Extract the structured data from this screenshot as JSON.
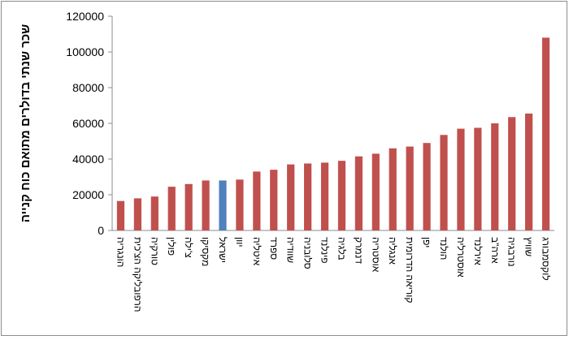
{
  "chart_data": {
    "type": "bar",
    "y_label": "שכר שנתי בדולרים מתואם כוח קנייה",
    "categories": [
      "הונגריה",
      "הרפובליקה הצ'כית",
      "טורקיה",
      "פולין",
      "צ'ילה",
      "מקסיקו",
      "ישראל",
      "יוון",
      "איטליה",
      "ספרד",
      "שוודיה",
      "סלובניה",
      "פינלנד",
      "בלגיה",
      "דנמרק",
      "אוסטריה",
      "אנגליה",
      "קוריאה הדרומית",
      "יפן",
      "הולנד",
      "אוסטרליה",
      "אירלנד",
      "ארה\"ב",
      "נורבגיה",
      "שוויץ",
      "לוקסמבורג"
    ],
    "values": [
      16500,
      18000,
      19000,
      24500,
      26000,
      28000,
      28000,
      28500,
      33000,
      34000,
      37000,
      37500,
      38000,
      39000,
      41500,
      43000,
      46000,
      47000,
      49000,
      53500,
      57000,
      57500,
      60000,
      63500,
      65500,
      108000
    ],
    "colors": [
      "#c0504d",
      "#c0504d",
      "#c0504d",
      "#c0504d",
      "#c0504d",
      "#c0504d",
      "#4f81bd",
      "#c0504d",
      "#c0504d",
      "#c0504d",
      "#c0504d",
      "#c0504d",
      "#c0504d",
      "#c0504d",
      "#c0504d",
      "#c0504d",
      "#c0504d",
      "#c0504d",
      "#c0504d",
      "#c0504d",
      "#c0504d",
      "#c0504d",
      "#c0504d",
      "#c0504d",
      "#c0504d",
      "#c0504d"
    ],
    "ylim": [
      0,
      120000
    ],
    "yticks": [
      0,
      20000,
      40000,
      60000,
      80000,
      100000,
      120000
    ],
    "grid": false
  }
}
